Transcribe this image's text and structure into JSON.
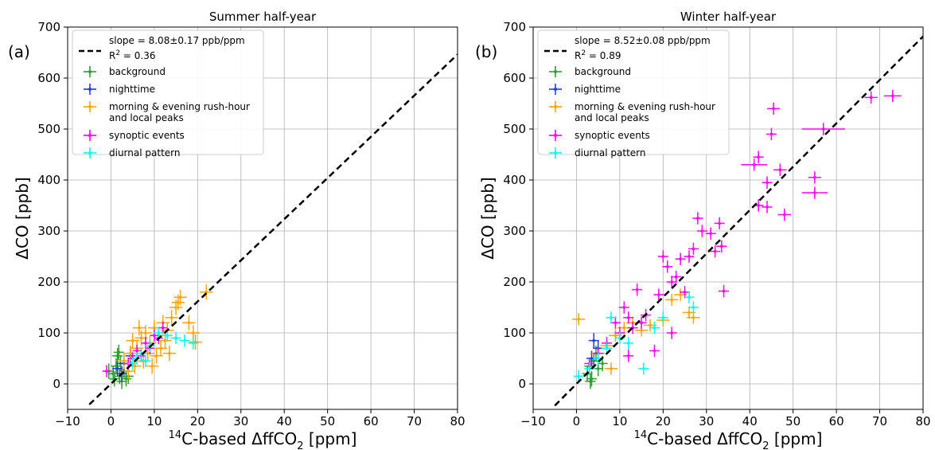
{
  "chart_data": [
    {
      "type": "scatter",
      "panel_label": "(a)",
      "title": "Summer half-year",
      "xlabel": {
        "pre": "14",
        "main": "C-based ΔffCO",
        "sub": "2",
        "post": " [ppm]"
      },
      "ylabel": "ΔCO [ppb]",
      "xlim": [
        -10,
        80
      ],
      "ylim": [
        -50,
        700
      ],
      "xticks": [
        -10,
        0,
        10,
        20,
        30,
        40,
        50,
        60,
        70,
        80
      ],
      "yticks": [
        0,
        100,
        200,
        300,
        400,
        500,
        600,
        700
      ],
      "grid": true,
      "legend_position": "top-left",
      "fit": {
        "slope": 8.08,
        "intercept": 0,
        "x_range": [
          -5,
          80
        ],
        "label": "slope = 8.08±0.17 ppb/ppm",
        "r2_label": {
          "pre": "R",
          "sup": "2",
          "post": " = 0.36"
        }
      },
      "series": [
        {
          "name": "background",
          "color": "#2ca02c",
          "points": [
            [
              0.5,
              20,
              1.2,
              15
            ],
            [
              1.2,
              35,
              1.2,
              15
            ],
            [
              2.0,
              15,
              1.2,
              15
            ],
            [
              1.5,
              55,
              1.2,
              15
            ],
            [
              2.5,
              5,
              1.2,
              15
            ],
            [
              -0.5,
              25,
              1.2,
              15
            ],
            [
              3.0,
              25,
              1.2,
              15
            ],
            [
              1.8,
              62,
              1.2,
              15
            ],
            [
              3.5,
              10,
              1.2,
              15
            ],
            [
              2.2,
              40,
              1.2,
              15
            ],
            [
              4.0,
              15,
              1.2,
              15
            ],
            [
              0.8,
              10,
              1.2,
              15
            ]
          ]
        },
        {
          "name": "nighttime",
          "color": "#1f3fe0",
          "points": [
            [
              1.5,
              30,
              1.2,
              15
            ],
            [
              3.0,
              40,
              1.2,
              15
            ],
            [
              4.5,
              55,
              1.2,
              15
            ],
            [
              2.5,
              20,
              1.2,
              15
            ]
          ]
        },
        {
          "name": "morning & evening rush-hour and local peaks",
          "color": "#ffa500",
          "points": [
            [
              3.0,
              45,
              1.5,
              15
            ],
            [
              4.5,
              60,
              1.5,
              15
            ],
            [
              5.0,
              85,
              1.5,
              15
            ],
            [
              6.0,
              70,
              1.5,
              15
            ],
            [
              7.0,
              90,
              1.5,
              15
            ],
            [
              8.0,
              100,
              1.5,
              15
            ],
            [
              9.0,
              80,
              1.5,
              15
            ],
            [
              10.0,
              110,
              1.5,
              15
            ],
            [
              11.0,
              95,
              1.5,
              15
            ],
            [
              12.0,
              120,
              1.5,
              15
            ],
            [
              13.0,
              105,
              1.5,
              15
            ],
            [
              14.0,
              130,
              1.5,
              15
            ],
            [
              15.0,
              150,
              1.5,
              15
            ],
            [
              16.0,
              170,
              1.5,
              15
            ],
            [
              18.0,
              120,
              1.5,
              15
            ],
            [
              19.0,
              100,
              1.5,
              15
            ],
            [
              19.5,
              82,
              1.5,
              15
            ],
            [
              22.0,
              180,
              1.5,
              15
            ],
            [
              6.5,
              110,
              1.5,
              15
            ],
            [
              8.5,
              60,
              1.5,
              15
            ],
            [
              10.5,
              55,
              1.5,
              15
            ],
            [
              12.5,
              85,
              1.5,
              15
            ],
            [
              5.5,
              35,
              1.5,
              15
            ],
            [
              4.0,
              25,
              1.5,
              15
            ],
            [
              7.5,
              45,
              1.5,
              15
            ],
            [
              9.5,
              35,
              1.5,
              15
            ],
            [
              11.5,
              70,
              1.5,
              15
            ],
            [
              13.5,
              60,
              1.5,
              15
            ],
            [
              15.5,
              160,
              1.5,
              15
            ]
          ]
        },
        {
          "name": "synoptic events",
          "color": "#ff00ff",
          "points": [
            [
              -1.0,
              25,
              1.0,
              12
            ],
            [
              4.0,
              40,
              1.0,
              12
            ],
            [
              6.0,
              65,
              1.0,
              12
            ],
            [
              8.0,
              80,
              1.0,
              12
            ],
            [
              10.0,
              95,
              1.0,
              12
            ],
            [
              12.0,
              110,
              1.0,
              12
            ],
            [
              7.0,
              55,
              1.0,
              12
            ],
            [
              9.0,
              70,
              1.0,
              12
            ],
            [
              11.0,
              90,
              1.0,
              12
            ],
            [
              5.0,
              50,
              1.0,
              12
            ]
          ]
        },
        {
          "name": "diurnal pattern",
          "color": "#00ffff",
          "points": [
            [
              5.0,
              40,
              1.2,
              12
            ],
            [
              7.0,
              60,
              1.2,
              12
            ],
            [
              9.0,
              75,
              1.2,
              12
            ],
            [
              11.0,
              100,
              1.2,
              12
            ],
            [
              13.0,
              95,
              1.2,
              12
            ],
            [
              15.0,
              90,
              1.2,
              12
            ],
            [
              17.0,
              85,
              1.2,
              12
            ],
            [
              19.0,
              80,
              1.2,
              12
            ],
            [
              6.0,
              50,
              1.2,
              12
            ],
            [
              8.0,
              45,
              1.2,
              12
            ]
          ]
        }
      ]
    },
    {
      "type": "scatter",
      "panel_label": "(b)",
      "title": "Winter half-year",
      "xlabel": {
        "pre": "14",
        "main": "C-based ΔffCO",
        "sub": "2",
        "post": " [ppm]"
      },
      "ylabel": "ΔCO [ppb]",
      "xlim": [
        -10,
        80
      ],
      "ylim": [
        -50,
        700
      ],
      "xticks": [
        -10,
        0,
        10,
        20,
        30,
        40,
        50,
        60,
        70,
        80
      ],
      "yticks": [
        0,
        100,
        200,
        300,
        400,
        500,
        600,
        700
      ],
      "grid": true,
      "legend_position": "top-left",
      "fit": {
        "slope": 8.52,
        "intercept": 0,
        "x_range": [
          -5,
          80
        ],
        "label": "slope = 8.52±0.08 ppb/ppm",
        "r2_label": {
          "pre": "R",
          "sup": "2",
          "post": " = 0.89"
        }
      },
      "series": [
        {
          "name": "background",
          "color": "#2ca02c",
          "points": [
            [
              2.5,
              20,
              1.2,
              15
            ],
            [
              3.0,
              35,
              1.2,
              15
            ],
            [
              3.5,
              10,
              1.2,
              15
            ],
            [
              4.0,
              45,
              1.2,
              15
            ],
            [
              5.0,
              30,
              1.2,
              15
            ],
            [
              4.5,
              60,
              1.2,
              15
            ],
            [
              6.0,
              40,
              1.2,
              15
            ],
            [
              3.2,
              5,
              1.2,
              15
            ]
          ]
        },
        {
          "name": "nighttime",
          "color": "#1f3fe0",
          "points": [
            [
              4.0,
              85,
              1.2,
              15
            ],
            [
              5.0,
              70,
              1.2,
              15
            ],
            [
              3.5,
              50,
              1.2,
              15
            ]
          ]
        },
        {
          "name": "morning & evening rush-hour and local peaks",
          "color": "#ffa500",
          "points": [
            [
              0.5,
              127,
              1.5,
              12
            ],
            [
              5.0,
              60,
              1.5,
              12
            ],
            [
              7.0,
              75,
              1.5,
              12
            ],
            [
              9.0,
              95,
              1.5,
              12
            ],
            [
              11.0,
              110,
              1.5,
              12
            ],
            [
              13.0,
              120,
              1.5,
              12
            ],
            [
              15.0,
              105,
              1.5,
              12
            ],
            [
              17.0,
              115,
              1.5,
              12
            ],
            [
              20.0,
              125,
              1.5,
              12
            ],
            [
              22.0,
              165,
              1.5,
              12
            ],
            [
              24.0,
              175,
              1.5,
              12
            ],
            [
              26.0,
              140,
              1.5,
              12
            ],
            [
              27.0,
              130,
              1.5,
              12
            ],
            [
              8.0,
              30,
              1.5,
              12
            ]
          ]
        },
        {
          "name": "synoptic events",
          "color": "#ff00ff",
          "points": [
            [
              3.0,
              40,
              1.2,
              12
            ],
            [
              5.0,
              60,
              1.2,
              12
            ],
            [
              7.0,
              80,
              1.2,
              12
            ],
            [
              9.0,
              120,
              1.2,
              12
            ],
            [
              10.0,
              100,
              1.2,
              12
            ],
            [
              11.0,
              150,
              1.2,
              12
            ],
            [
              12.0,
              130,
              1.2,
              12
            ],
            [
              13.0,
              110,
              1.2,
              12
            ],
            [
              14.0,
              185,
              1.2,
              12
            ],
            [
              15.0,
              120,
              1.2,
              12
            ],
            [
              16.0,
              135,
              1.2,
              12
            ],
            [
              18.0,
              65,
              1.2,
              12
            ],
            [
              19.0,
              175,
              1.2,
              12
            ],
            [
              20.0,
              250,
              1.2,
              12
            ],
            [
              21.0,
              230,
              1.2,
              12
            ],
            [
              22.0,
              200,
              1.2,
              12
            ],
            [
              23.0,
              210,
              1.2,
              12
            ],
            [
              24.0,
              245,
              1.2,
              12
            ],
            [
              25.0,
              180,
              1.2,
              12
            ],
            [
              26.0,
              250,
              1.2,
              12
            ],
            [
              27.0,
              265,
              1.2,
              12
            ],
            [
              28.0,
              325,
              1.2,
              12
            ],
            [
              29.0,
              300,
              1.2,
              12
            ],
            [
              31.0,
              295,
              1.2,
              12
            ],
            [
              32.0,
              260,
              1.2,
              12
            ],
            [
              33.0,
              315,
              1.2,
              12
            ],
            [
              33.5,
              270,
              1.2,
              12
            ],
            [
              34.0,
              182,
              1.2,
              12
            ],
            [
              41.0,
              430,
              3.0,
              12
            ],
            [
              42.0,
              445,
              1.2,
              12
            ],
            [
              42.0,
              350,
              1.2,
              12
            ],
            [
              44.0,
              395,
              1.2,
              12
            ],
            [
              44.0,
              347,
              1.2,
              12
            ],
            [
              45.0,
              490,
              1.2,
              12
            ],
            [
              45.5,
              540,
              1.5,
              12
            ],
            [
              47.0,
              420,
              1.5,
              12
            ],
            [
              48.0,
              332,
              1.5,
              12
            ],
            [
              55.0,
              405,
              1.5,
              12
            ],
            [
              55.0,
              375,
              3.0,
              12
            ],
            [
              57.0,
              500,
              5.0,
              12
            ],
            [
              68.0,
              562,
              1.5,
              12
            ],
            [
              73.0,
              565,
              2.0,
              12
            ],
            [
              22.0,
              100,
              1.2,
              12
            ],
            [
              12.0,
              55,
              1.2,
              12
            ]
          ]
        },
        {
          "name": "diurnal pattern",
          "color": "#00ffff",
          "points": [
            [
              0.5,
              15,
              1.2,
              12
            ],
            [
              3.0,
              30,
              1.2,
              12
            ],
            [
              5.0,
              50,
              1.2,
              12
            ],
            [
              7.0,
              70,
              1.2,
              12
            ],
            [
              8.0,
              130,
              1.2,
              12
            ],
            [
              10.0,
              90,
              1.2,
              12
            ],
            [
              12.0,
              80,
              1.2,
              12
            ],
            [
              15.5,
              30,
              1.2,
              12
            ],
            [
              18.0,
              110,
              1.2,
              12
            ],
            [
              20.0,
              130,
              1.2,
              12
            ],
            [
              26.0,
              170,
              1.2,
              12
            ],
            [
              27.0,
              150,
              1.2,
              12
            ]
          ]
        }
      ]
    }
  ]
}
